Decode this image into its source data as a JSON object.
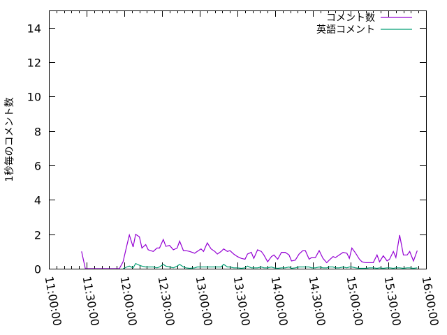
{
  "chart_data": {
    "type": "line",
    "title": "",
    "xlabel": "",
    "ylabel": "1秒毎のコメント数",
    "xlim": [
      "11:00:00",
      "16:00:00"
    ],
    "ylim": [
      0,
      15
    ],
    "x_ticks": [
      "11:00:00",
      "11:30:00",
      "12:00:00",
      "12:30:00",
      "13:00:00",
      "13:30:00",
      "14:00:00",
      "14:30:00",
      "15:00:00",
      "15:30:00",
      "16:00:00"
    ],
    "y_ticks": [
      0,
      2,
      4,
      6,
      8,
      10,
      12,
      14
    ],
    "grid": false,
    "legend_position": "top-right",
    "series": [
      {
        "name": "コメント数",
        "color": "#9400d3",
        "points": [
          [
            "11:26",
            1.0
          ],
          [
            "11:29",
            0
          ],
          [
            "11:56",
            0
          ],
          [
            "11:59",
            0.4
          ],
          [
            "12:02",
            1.35
          ],
          [
            "12:04",
            1.96
          ],
          [
            "12:07",
            1.26
          ],
          [
            "12:09",
            2.0
          ],
          [
            "12:12",
            1.85
          ],
          [
            "12:14",
            1.2
          ],
          [
            "12:17",
            1.4
          ],
          [
            "12:19",
            1.1
          ],
          [
            "12:23",
            1.0
          ],
          [
            "12:26",
            1.2
          ],
          [
            "12:28",
            1.2
          ],
          [
            "12:31",
            1.7
          ],
          [
            "12:33",
            1.3
          ],
          [
            "12:36",
            1.35
          ],
          [
            "12:39",
            1.1
          ],
          [
            "12:42",
            1.2
          ],
          [
            "12:44",
            1.6
          ],
          [
            "12:47",
            1.05
          ],
          [
            "12:49",
            1.05
          ],
          [
            "12:52",
            1.0
          ],
          [
            "12:56",
            0.9
          ],
          [
            "12:58",
            1.0
          ],
          [
            "13:01",
            1.15
          ],
          [
            "13:03",
            1.0
          ],
          [
            "13:06",
            1.5
          ],
          [
            "13:09",
            1.15
          ],
          [
            "13:12",
            1.0
          ],
          [
            "13:14",
            0.85
          ],
          [
            "13:17",
            1.0
          ],
          [
            "13:19",
            1.15
          ],
          [
            "13:22",
            1.0
          ],
          [
            "13:24",
            1.05
          ],
          [
            "13:27",
            0.85
          ],
          [
            "13:30",
            0.7
          ],
          [
            "13:33",
            0.6
          ],
          [
            "13:36",
            0.55
          ],
          [
            "13:38",
            0.85
          ],
          [
            "13:41",
            0.95
          ],
          [
            "13:43",
            0.6
          ],
          [
            "13:46",
            1.1
          ],
          [
            "13:49",
            1.0
          ],
          [
            "13:51",
            0.8
          ],
          [
            "13:54",
            0.4
          ],
          [
            "13:57",
            0.7
          ],
          [
            "13:59",
            0.8
          ],
          [
            "14:02",
            0.55
          ],
          [
            "14:05",
            0.95
          ],
          [
            "14:08",
            0.95
          ],
          [
            "14:11",
            0.8
          ],
          [
            "14:13",
            0.45
          ],
          [
            "14:16",
            0.5
          ],
          [
            "14:19",
            0.85
          ],
          [
            "14:22",
            1.05
          ],
          [
            "14:24",
            1.05
          ],
          [
            "14:27",
            0.55
          ],
          [
            "14:29",
            0.65
          ],
          [
            "14:32",
            0.65
          ],
          [
            "14:35",
            1.05
          ],
          [
            "14:38",
            0.6
          ],
          [
            "14:41",
            0.35
          ],
          [
            "14:43",
            0.5
          ],
          [
            "14:46",
            0.7
          ],
          [
            "14:48",
            0.65
          ],
          [
            "14:51",
            0.8
          ],
          [
            "14:54",
            0.95
          ],
          [
            "14:57",
            0.9
          ],
          [
            "14:59",
            0.6
          ],
          [
            "15:01",
            1.2
          ],
          [
            "15:04",
            0.9
          ],
          [
            "15:07",
            0.55
          ],
          [
            "15:09",
            0.4
          ],
          [
            "15:12",
            0.35
          ],
          [
            "15:15",
            0.35
          ],
          [
            "15:18",
            0.35
          ],
          [
            "15:21",
            0.8
          ],
          [
            "15:23",
            0.4
          ],
          [
            "15:26",
            0.75
          ],
          [
            "15:29",
            0.45
          ],
          [
            "15:31",
            0.55
          ],
          [
            "15:34",
            1.0
          ],
          [
            "15:36",
            0.65
          ],
          [
            "15:39",
            1.95
          ],
          [
            "15:42",
            0.8
          ],
          [
            "15:45",
            0.8
          ],
          [
            "15:47",
            1.0
          ],
          [
            "15:50",
            0.45
          ],
          [
            "15:53",
            1.05
          ]
        ]
      },
      {
        "name": "英語コメント",
        "color": "#009e73",
        "points": [
          [
            "11:59",
            0
          ],
          [
            "12:02",
            0.1
          ],
          [
            "12:04",
            0.15
          ],
          [
            "12:07",
            0.05
          ],
          [
            "12:09",
            0.3
          ],
          [
            "12:12",
            0.2
          ],
          [
            "12:14",
            0.15
          ],
          [
            "12:17",
            0.1
          ],
          [
            "12:19",
            0.1
          ],
          [
            "12:23",
            0.1
          ],
          [
            "12:26",
            0.05
          ],
          [
            "12:28",
            0.1
          ],
          [
            "12:31",
            0.25
          ],
          [
            "12:33",
            0.15
          ],
          [
            "12:36",
            0.1
          ],
          [
            "12:39",
            0.05
          ],
          [
            "12:42",
            0.15
          ],
          [
            "12:44",
            0.25
          ],
          [
            "12:47",
            0.1
          ],
          [
            "12:49",
            0.05
          ],
          [
            "12:52",
            0.02
          ],
          [
            "12:56",
            0.05
          ],
          [
            "12:58",
            0.1
          ],
          [
            "13:01",
            0.1
          ],
          [
            "13:03",
            0.1
          ],
          [
            "13:06",
            0.1
          ],
          [
            "13:09",
            0.1
          ],
          [
            "13:12",
            0.1
          ],
          [
            "13:14",
            0.1
          ],
          [
            "13:17",
            0.1
          ],
          [
            "13:19",
            0.25
          ],
          [
            "13:22",
            0.1
          ],
          [
            "13:24",
            0.1
          ],
          [
            "13:27",
            0.05
          ],
          [
            "13:30",
            0.05
          ],
          [
            "13:33",
            0.02
          ],
          [
            "13:36",
            0.05
          ],
          [
            "13:38",
            0.15
          ],
          [
            "13:41",
            0.05
          ],
          [
            "13:43",
            0.05
          ],
          [
            "13:46",
            0.05
          ],
          [
            "13:49",
            0.1
          ],
          [
            "13:51",
            0.05
          ],
          [
            "13:54",
            0.05
          ],
          [
            "13:57",
            0.1
          ],
          [
            "13:59",
            0.05
          ],
          [
            "14:02",
            0.02
          ],
          [
            "14:05",
            0.05
          ],
          [
            "14:08",
            0.05
          ],
          [
            "14:11",
            0.1
          ],
          [
            "14:13",
            0.02
          ],
          [
            "14:16",
            0.05
          ],
          [
            "14:19",
            0.1
          ],
          [
            "14:22",
            0.1
          ],
          [
            "14:24",
            0.1
          ],
          [
            "14:27",
            0.1
          ],
          [
            "14:29",
            0.05
          ],
          [
            "14:32",
            0.05
          ],
          [
            "14:35",
            0.1
          ],
          [
            "14:38",
            0.05
          ],
          [
            "14:41",
            0.05
          ],
          [
            "14:43",
            0.1
          ],
          [
            "14:46",
            0.1
          ],
          [
            "14:48",
            0.05
          ],
          [
            "14:51",
            0.05
          ],
          [
            "14:54",
            0.1
          ],
          [
            "14:57",
            0.05
          ],
          [
            "14:59",
            0.1
          ],
          [
            "15:01",
            0.1
          ],
          [
            "15:04",
            0.05
          ],
          [
            "15:07",
            0.02
          ],
          [
            "15:09",
            0.02
          ],
          [
            "15:12",
            0.02
          ],
          [
            "15:15",
            0.05
          ],
          [
            "15:18",
            0.05
          ],
          [
            "15:21",
            0.02
          ],
          [
            "15:23",
            0.05
          ],
          [
            "15:26",
            0.02
          ],
          [
            "15:29",
            0.05
          ],
          [
            "15:31",
            0.05
          ],
          [
            "15:34",
            0.02
          ],
          [
            "15:36",
            0.05
          ],
          [
            "15:39",
            0.05
          ],
          [
            "15:42",
            0.02
          ],
          [
            "15:45",
            0.05
          ],
          [
            "15:47",
            0.05
          ],
          [
            "15:50",
            0.02
          ],
          [
            "15:53",
            0.05
          ]
        ]
      }
    ]
  }
}
